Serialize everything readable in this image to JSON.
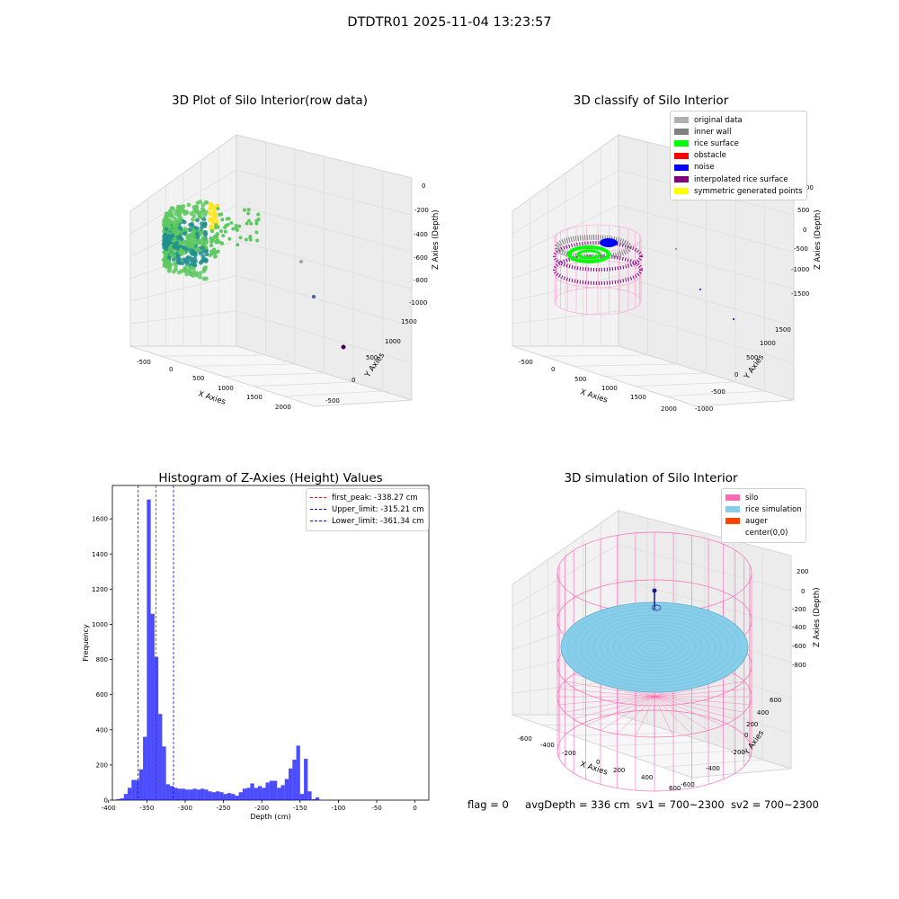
{
  "figure": {
    "suptitle": "DTDTR01 2025-11-04 13:23:57",
    "footer": {
      "flag": "flag = 0",
      "avg_depth": "avgDepth = 336 cm",
      "sv1": "sv1 = 700~2300",
      "sv2": "sv2 = 700~2300"
    }
  },
  "chart_data": [
    {
      "type": "scatter",
      "projection": "3d",
      "title": "3D Plot of Silo Interior(row data)",
      "xlabel": "X Axies",
      "ylabel": "Y Axies",
      "zlabel": "Z Axies (Depth)",
      "x_ticks": [
        "-500",
        "0",
        "500",
        "1000",
        "1500",
        "2000"
      ],
      "y_ticks": [
        "-500",
        "0",
        "500",
        "1000",
        "1500"
      ],
      "z_ticks": [
        "0",
        "-200",
        "-400",
        "-600",
        "-800",
        "-1000"
      ],
      "colormap": [
        "#440154",
        "#21918c",
        "#5ec962",
        "#fde725"
      ],
      "grid": true
    },
    {
      "type": "scatter",
      "projection": "3d",
      "title": "3D classify of Silo Interior",
      "xlabel": "X Axies",
      "ylabel": "Y Axies",
      "zlabel": "Z Axies (Depth)",
      "x_ticks": [
        "-500",
        "0",
        "500",
        "1000",
        "1500",
        "2000"
      ],
      "y_ticks": [
        "-1000",
        "-500",
        "0",
        "500",
        "1000",
        "1500"
      ],
      "z_ticks": [
        "1000",
        "500",
        "0",
        "-500",
        "-1000",
        "-1500"
      ],
      "legend": [
        {
          "label": "original data",
          "color": "#b0b0b0"
        },
        {
          "label": "inner wall",
          "color": "#808080"
        },
        {
          "label": "rice surface",
          "color": "#00ff00"
        },
        {
          "label": "obstacle",
          "color": "#ff0000"
        },
        {
          "label": "noise",
          "color": "#0000ff"
        },
        {
          "label": "interpolated rice surface",
          "color": "#800080"
        },
        {
          "label": "symmetric generated points",
          "color": "#ffff00"
        }
      ],
      "legend_position": "top-right",
      "grid": true
    },
    {
      "type": "bar",
      "title": "Histogram of Z-Axies (Height) Values",
      "xlabel": "Depth (cm)",
      "ylabel": "Frequency",
      "bar_color": "#0000ff",
      "bin_width": 5,
      "bin_starts": [
        -390,
        -385,
        -380,
        -375,
        -370,
        -365,
        -360,
        -355,
        -350,
        -345,
        -340,
        -335,
        -330,
        -325,
        -320,
        -315,
        -310,
        -305,
        -300,
        -295,
        -290,
        -285,
        -280,
        -275,
        -270,
        -265,
        -260,
        -255,
        -250,
        -245,
        -240,
        -235,
        -230,
        -225,
        -220,
        -215,
        -210,
        -205,
        -200,
        -195,
        -190,
        -185,
        -180,
        -175,
        -170,
        -165,
        -160,
        -155,
        -150,
        -145,
        -140,
        -135,
        -130,
        -125,
        -120,
        -115,
        -110,
        -105,
        -100,
        -95,
        -90,
        -85,
        -80,
        -75,
        -70,
        -65,
        -60,
        -55,
        -50,
        -45,
        -40,
        -35,
        -30,
        -25,
        -20,
        -15,
        -10,
        -5,
        0
      ],
      "values": [
        5,
        10,
        35,
        70,
        115,
        115,
        175,
        360,
        1710,
        1060,
        815,
        490,
        305,
        90,
        80,
        70,
        65,
        65,
        60,
        60,
        65,
        60,
        65,
        60,
        50,
        45,
        50,
        45,
        35,
        40,
        35,
        25,
        45,
        65,
        70,
        95,
        70,
        80,
        70,
        100,
        110,
        110,
        70,
        85,
        120,
        180,
        230,
        310,
        35,
        235,
        50,
        5,
        15,
        0,
        0,
        0,
        0,
        0,
        0,
        0,
        0,
        0,
        0,
        0,
        0,
        0,
        0,
        0,
        0,
        0,
        0,
        0,
        0,
        0,
        0,
        0,
        0,
        0,
        0
      ],
      "xlim": [
        -395,
        18
      ],
      "ylim": [
        0,
        1790
      ],
      "x_ticks": [
        -400,
        -350,
        -300,
        -250,
        -200,
        -150,
        -100,
        -50,
        0
      ],
      "y_ticks": [
        0,
        200,
        400,
        600,
        800,
        1000,
        1200,
        1400,
        1600
      ],
      "vlines": [
        {
          "label": "first_peak: -338.27 cm",
          "x": -338.27,
          "color": "#ff0000"
        },
        {
          "label": "Upper_limit: -315.21 cm",
          "x": -315.21,
          "color": "#0000ff"
        },
        {
          "label": "Lower_limit: -361.34 cm",
          "x": -361.34,
          "color": "#0000ff"
        }
      ],
      "legend_position": "top-right"
    },
    {
      "type": "surface",
      "projection": "3d",
      "title": "3D simulation of Silo Interior",
      "xlabel": "X Axies",
      "ylabel": "Y Axies",
      "zlabel": "Z Axies (Depth)",
      "x_ticks": [
        "-600",
        "-400",
        "-200",
        "0",
        "200",
        "400",
        "600"
      ],
      "y_ticks": [
        "-600",
        "-400",
        "-200",
        "0",
        "200",
        "400",
        "600"
      ],
      "z_ticks": [
        "200",
        "0",
        "-200",
        "-400",
        "-600",
        "-800"
      ],
      "legend": [
        {
          "label": "silo",
          "color": "#ff69b4"
        },
        {
          "label": "rice simulation",
          "color": "#87ceeb"
        },
        {
          "label": "auger",
          "color": "#ff4500"
        },
        {
          "label": "center(0,0)",
          "color": ""
        }
      ],
      "legend_position": "top-right",
      "grid": true
    }
  ]
}
